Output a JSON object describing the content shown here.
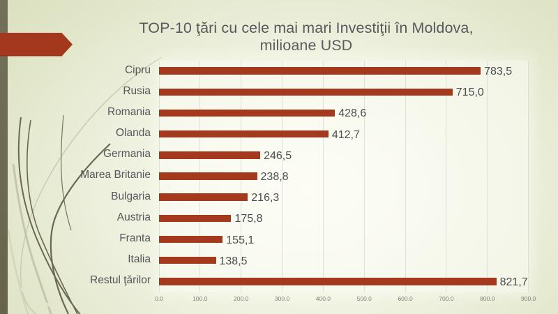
{
  "slide": {
    "title": {
      "line1": "TOP-10 ţări cu cele mai mari Investiţii în Moldova,",
      "line2": "milioane USD"
    }
  },
  "colors": {
    "bar": "#a5391d",
    "arrow": "#a4381c",
    "stripe": "#6d6a54",
    "title_text": "#58595b",
    "category_text": "#55565a",
    "value_text": "#4c4d4f",
    "tick_text": "#80817a",
    "gridline": "#dfe1d8",
    "background": "#e6ead0"
  },
  "chart_data": {
    "type": "bar",
    "orientation": "horizontal",
    "title": "TOP-10 ţări cu cele mai mari Investiţii în Moldova, milioane USD",
    "categories": [
      "Cipru",
      "Rusia",
      "Romania",
      "Olanda",
      "Germania",
      "Marea Britanie",
      "Bulgaria",
      "Austria",
      "Franta",
      "Italia",
      "Restul ţărilor"
    ],
    "values": [
      783.5,
      715.0,
      428.6,
      412.7,
      246.5,
      238.8,
      216.3,
      175.8,
      155.1,
      138.5,
      821.7
    ],
    "value_labels": [
      "783,5",
      "715,0",
      "428,6",
      "412,7",
      "246,5",
      "238,8",
      "216,3",
      "175,8",
      "155,1",
      "138,5",
      "821,7"
    ],
    "x_ticks": [
      "0.0",
      "100.0",
      "200.0",
      "300.0",
      "400.0",
      "500.0",
      "600.0",
      "700.0",
      "800.0",
      "900.0"
    ],
    "xlim": [
      0,
      900
    ],
    "grid": true,
    "legend": false,
    "xlabel": "",
    "ylabel": ""
  }
}
